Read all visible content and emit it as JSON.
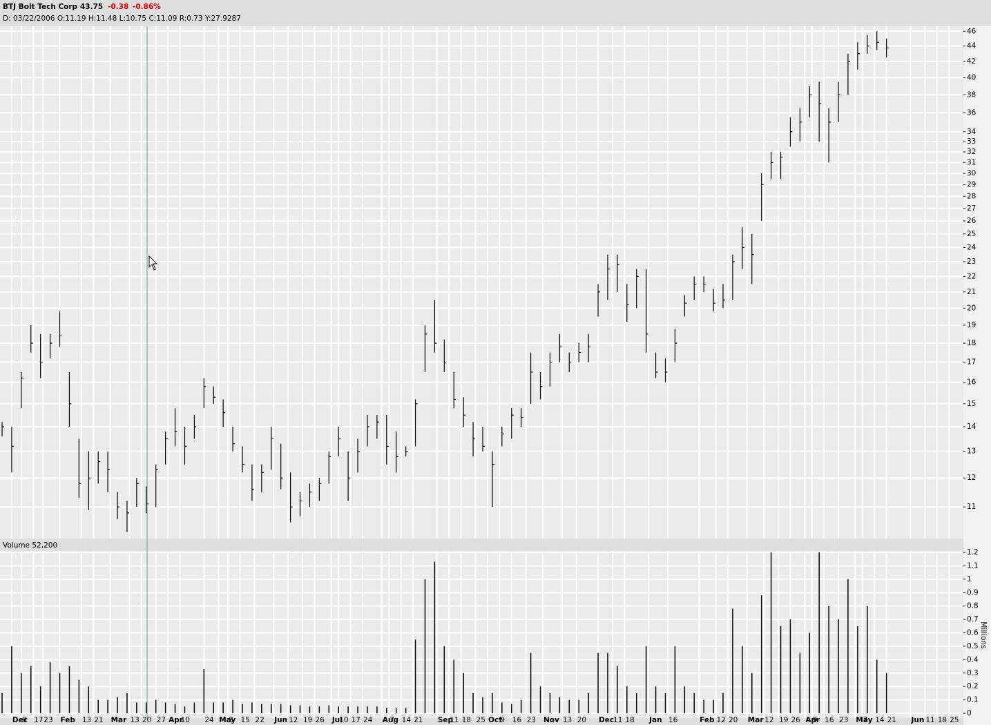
{
  "header": {
    "symbol_name": "BTJ Bolt Tech Corp",
    "last": 43.75,
    "change": -0.38,
    "change_percent": "-0.86%",
    "info": "D: 03/22/2006 O:11.19 H:11.48 L:10.75 C:11.09 R:0.73 Y:27.9287"
  },
  "chart_data": [
    {
      "type": "ohlc",
      "log_scale": true,
      "grid": true,
      "color": "#000000",
      "x": [
        0,
        4,
        8,
        12,
        16,
        20,
        24,
        28,
        32,
        36,
        40,
        44,
        48,
        52,
        56,
        60,
        64,
        68,
        72,
        76,
        80,
        84,
        88,
        92,
        96,
        100,
        104,
        108,
        112,
        116,
        120,
        124,
        128,
        132,
        136,
        140,
        144,
        148,
        152,
        156,
        160,
        164,
        168,
        172,
        176,
        180,
        184,
        188,
        192,
        196,
        200,
        204,
        208,
        212,
        216,
        220,
        224,
        228,
        232,
        236,
        240,
        244,
        248,
        252,
        256,
        260,
        264,
        268,
        272,
        276,
        280,
        284,
        288,
        292,
        296,
        300,
        304,
        308,
        312,
        316,
        320,
        324,
        328,
        332,
        336,
        340,
        344,
        348,
        352,
        356,
        360,
        364,
        368
      ],
      "high": [
        14.2,
        14,
        16.5,
        19,
        18.5,
        18.5,
        19.8,
        16.5,
        13.5,
        13,
        13,
        13,
        11.5,
        11.2,
        12,
        11.7,
        12.5,
        13.8,
        14.8,
        14,
        14.5,
        16.2,
        15.8,
        15.2,
        14,
        13.2,
        12.5,
        12.5,
        14,
        13.3,
        12.2,
        11.5,
        11.8,
        12,
        13,
        14,
        13,
        13.5,
        14.5,
        14.5,
        14.5,
        13.8,
        13.2,
        15.2,
        19,
        20.5,
        18.2,
        16.5,
        15.3,
        14.2,
        14,
        13,
        14,
        14.8,
        14.8,
        17.5,
        16.5,
        17.5,
        18.5,
        17.5,
        18,
        18.5,
        21.5,
        23.5,
        23.5,
        21.5,
        22.5,
        22.5,
        17.5,
        17.2,
        18.8,
        20.8,
        22,
        22,
        21.2,
        21.5,
        23.5,
        25.5,
        25,
        30,
        32,
        32,
        35.5,
        36.5,
        39,
        39.5,
        36.5,
        39.5,
        43,
        44.5,
        45.5,
        46,
        45
      ],
      "low": [
        13.6,
        12.2,
        14.8,
        17.5,
        16.2,
        17.2,
        17.8,
        14,
        11.3,
        10.9,
        11.8,
        11.5,
        10.6,
        10.2,
        11,
        10.8,
        11,
        12.5,
        13.2,
        12.5,
        13.5,
        14.8,
        15,
        14,
        13,
        12.2,
        11.2,
        11.5,
        12.3,
        11.6,
        10.5,
        10.7,
        11,
        11.2,
        11.8,
        12.8,
        11.2,
        12.2,
        13.2,
        13.5,
        12.5,
        12.2,
        12.8,
        13.2,
        16.5,
        17.5,
        16.5,
        14.8,
        14,
        12.8,
        13,
        11,
        13.2,
        13.5,
        14,
        15,
        15.2,
        15.8,
        17,
        16.5,
        17,
        17,
        19.5,
        20.5,
        21,
        19.2,
        20,
        17.5,
        16.2,
        16,
        17,
        19.5,
        20.5,
        21,
        19.8,
        20,
        20.5,
        22.5,
        21.5,
        26,
        29.5,
        29.5,
        32.5,
        33,
        35.5,
        33,
        31,
        35,
        38,
        41,
        43,
        43.5,
        42.5
      ],
      "close": [
        14,
        13.2,
        16.2,
        18,
        17,
        18,
        18.4,
        15,
        11.8,
        12,
        12.6,
        12.3,
        11,
        10.8,
        11.8,
        11.1,
        12.3,
        13.5,
        13.8,
        13.2,
        14,
        15.8,
        15.3,
        14.6,
        13.3,
        12.5,
        11.6,
        12.2,
        13.5,
        12,
        11,
        11.2,
        11.5,
        11.8,
        12.8,
        13.5,
        12,
        13,
        14,
        14.2,
        13.2,
        12.8,
        13,
        15,
        18.5,
        18,
        17,
        15.2,
        14.5,
        13.5,
        13.2,
        12.5,
        13.7,
        14.5,
        14.4,
        16.5,
        15.8,
        17,
        17.8,
        17,
        17.5,
        17.8,
        21,
        22.5,
        22.8,
        20.2,
        22,
        18.5,
        16.5,
        16.5,
        18,
        20.3,
        21.5,
        21.5,
        20.3,
        20.5,
        23,
        24,
        23.5,
        29,
        31,
        31.5,
        34,
        35,
        38,
        37,
        35,
        38,
        42,
        43,
        44,
        44.5,
        43.75
      ],
      "xlim": [
        0,
        400
      ],
      "ylim": [
        10,
        46.7
      ],
      "yticks": [
        11,
        12,
        13,
        14,
        15,
        16,
        17,
        18,
        19,
        20,
        21,
        22,
        23,
        24,
        25,
        26,
        27,
        28,
        29,
        30,
        31,
        32,
        33,
        34,
        36,
        38,
        40,
        42,
        44,
        46
      ]
    },
    {
      "type": "bar",
      "title": "Volume 52,200",
      "y_label": "Millions",
      "color": "#000000",
      "grid": true,
      "x": [
        0,
        4,
        8,
        12,
        16,
        20,
        24,
        28,
        32,
        36,
        40,
        44,
        48,
        52,
        56,
        60,
        64,
        68,
        72,
        76,
        80,
        84,
        88,
        92,
        96,
        100,
        104,
        108,
        112,
        116,
        120,
        124,
        128,
        132,
        136,
        140,
        144,
        148,
        152,
        156,
        160,
        164,
        168,
        172,
        176,
        180,
        184,
        188,
        192,
        196,
        200,
        204,
        208,
        212,
        216,
        220,
        224,
        228,
        232,
        236,
        240,
        244,
        248,
        252,
        256,
        260,
        264,
        268,
        272,
        276,
        280,
        284,
        288,
        292,
        296,
        300,
        304,
        308,
        312,
        316,
        320,
        324,
        328,
        332,
        336,
        340,
        344,
        348,
        352,
        356,
        360,
        364,
        368
      ],
      "values": [
        0.15,
        0.5,
        0.3,
        0.35,
        0.2,
        0.38,
        0.3,
        0.35,
        0.25,
        0.2,
        0.1,
        0.1,
        0.12,
        0.15,
        0.08,
        0.08,
        0.1,
        0.08,
        0.07,
        0.05,
        0.08,
        0.33,
        0.08,
        0.08,
        0.1,
        0.07,
        0.08,
        0.07,
        0.07,
        0.07,
        0.06,
        0.06,
        0.05,
        0.05,
        0.06,
        0.05,
        0.05,
        0.05,
        0.05,
        0.05,
        0.04,
        0.04,
        0.04,
        0.55,
        1,
        1.13,
        0.5,
        0.4,
        0.3,
        0.15,
        0.12,
        0.15,
        0.08,
        0.07,
        0.1,
        0.45,
        0.2,
        0.15,
        0.12,
        0.1,
        0.1,
        0.15,
        0.45,
        0.45,
        0.35,
        0.2,
        0.15,
        0.5,
        0.2,
        0.15,
        0.5,
        0.2,
        0.15,
        0.1,
        0.1,
        0.15,
        0.78,
        0.5,
        0.3,
        0.88,
        1.2,
        0.65,
        0.7,
        0.45,
        0.6,
        1.2,
        0.8,
        0.7,
        1,
        0.65,
        0.8,
        0.4,
        0.3
      ],
      "xlim": [
        0,
        400
      ],
      "ylim": [
        0,
        1.2
      ],
      "yticks": [
        0,
        0.1,
        0.2,
        0.3,
        0.4,
        0.5,
        0.6,
        0.7,
        0.8,
        0.9,
        1,
        1.1,
        1.2
      ],
      "xticks": [
        {
          "value": 4,
          "label": "Dec"
        },
        {
          "value": 8,
          "label": "9"
        },
        {
          "value": 13,
          "label": "17"
        },
        {
          "value": 17,
          "label": "23"
        },
        {
          "value": 24,
          "label": "Feb"
        },
        {
          "value": 33,
          "label": "13"
        },
        {
          "value": 38,
          "label": "21"
        },
        {
          "value": 45,
          "label": "Mar"
        },
        {
          "value": 53,
          "label": "13"
        },
        {
          "value": 58,
          "label": "20"
        },
        {
          "value": 64,
          "label": "27"
        },
        {
          "value": 69,
          "label": "Apr"
        },
        {
          "value": 74,
          "label": "10"
        },
        {
          "value": 84,
          "label": "24"
        },
        {
          "value": 90,
          "label": "May"
        },
        {
          "value": 94,
          "label": "8"
        },
        {
          "value": 99,
          "label": "15"
        },
        {
          "value": 105,
          "label": "22"
        },
        {
          "value": 113,
          "label": "Jun"
        },
        {
          "value": 119,
          "label": "12"
        },
        {
          "value": 125,
          "label": "19"
        },
        {
          "value": 130,
          "label": "26"
        },
        {
          "value": 137,
          "label": "Jul"
        },
        {
          "value": 140,
          "label": "10"
        },
        {
          "value": 145,
          "label": "17"
        },
        {
          "value": 150,
          "label": "24"
        },
        {
          "value": 158,
          "label": "Aug"
        },
        {
          "value": 161,
          "label": "7"
        },
        {
          "value": 166,
          "label": "14"
        },
        {
          "value": 171,
          "label": "21"
        },
        {
          "value": 181,
          "label": "Sep"
        },
        {
          "value": 186,
          "label": "11"
        },
        {
          "value": 191,
          "label": "18"
        },
        {
          "value": 197,
          "label": "25"
        },
        {
          "value": 202,
          "label": "Oct"
        },
        {
          "value": 207,
          "label": "9"
        },
        {
          "value": 212,
          "label": "16"
        },
        {
          "value": 218,
          "label": "23"
        },
        {
          "value": 225,
          "label": "Nov"
        },
        {
          "value": 233,
          "label": "13"
        },
        {
          "value": 239,
          "label": "20"
        },
        {
          "value": 248,
          "label": "Dec"
        },
        {
          "value": 254,
          "label": "11"
        },
        {
          "value": 259,
          "label": "18"
        },
        {
          "value": 269,
          "label": "Jan"
        },
        {
          "value": 277,
          "label": "16"
        },
        {
          "value": 290,
          "label": "Feb"
        },
        {
          "value": 297,
          "label": "12"
        },
        {
          "value": 302,
          "label": "20"
        },
        {
          "value": 310,
          "label": "Mar"
        },
        {
          "value": 317,
          "label": "12"
        },
        {
          "value": 323,
          "label": "19"
        },
        {
          "value": 328,
          "label": "26"
        },
        {
          "value": 334,
          "label": "Apr"
        },
        {
          "value": 337,
          "label": "9"
        },
        {
          "value": 342,
          "label": "16"
        },
        {
          "value": 348,
          "label": "23"
        },
        {
          "value": 355,
          "label": "May"
        },
        {
          "value": 358,
          "label": "7"
        },
        {
          "value": 363,
          "label": "14"
        },
        {
          "value": 368,
          "label": "21"
        },
        {
          "value": 378,
          "label": "Jun"
        },
        {
          "value": 384,
          "label": "11"
        },
        {
          "value": 389,
          "label": "18"
        },
        {
          "value": 394,
          "label": "25"
        }
      ]
    }
  ]
}
